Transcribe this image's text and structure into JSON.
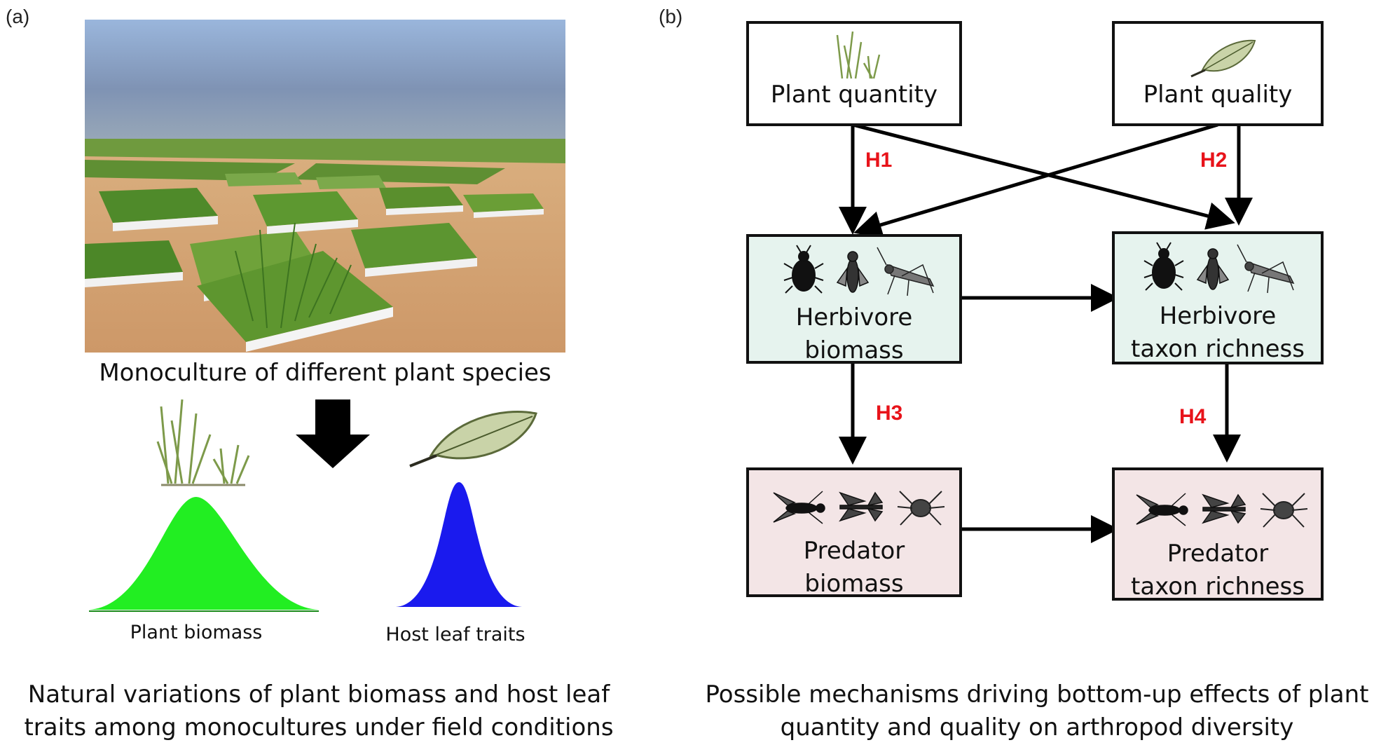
{
  "panel_a": {
    "label": "(a)",
    "photo_caption": "Monoculture of different plant species",
    "plant_biomass_label": "Plant biomass",
    "host_leaf_label": "Host leaf traits",
    "caption_line1": "Natural variations of plant biomass and host leaf",
    "caption_line2": "traits among monocultures under field conditions",
    "colors": {
      "plant_curve": "#22ee22",
      "leaf_curve": "#1a1aee"
    }
  },
  "panel_b": {
    "label": "(b)",
    "nodes": {
      "plant_quantity": "Plant quantity",
      "plant_quality": "Plant quality",
      "herbivore_biomass_1": "Herbivore",
      "herbivore_biomass_2": "biomass",
      "herbivore_richness_1": "Herbivore",
      "herbivore_richness_2": "taxon richness",
      "predator_biomass_1": "Predator",
      "predator_biomass_2": "biomass",
      "predator_richness_1": "Predator",
      "predator_richness_2": "taxon richness"
    },
    "hypotheses": {
      "h1": "H1",
      "h2": "H2",
      "h3": "H3",
      "h4": "H4"
    },
    "caption_line1": "Possible mechanisms driving  bottom-up effects of plant",
    "caption_line2": "quantity and quality on arthropod diversity",
    "colors": {
      "herbivore_fill": "#e6f3ee",
      "predator_fill": "#f3e5e6",
      "hypothesis_label": "#e8131a"
    },
    "icons": [
      "grass-icon",
      "leaf-icon",
      "beetle-icon",
      "fly-icon",
      "grasshopper-icon",
      "wasp-icon",
      "dragonfly-icon",
      "spider-icon"
    ]
  }
}
